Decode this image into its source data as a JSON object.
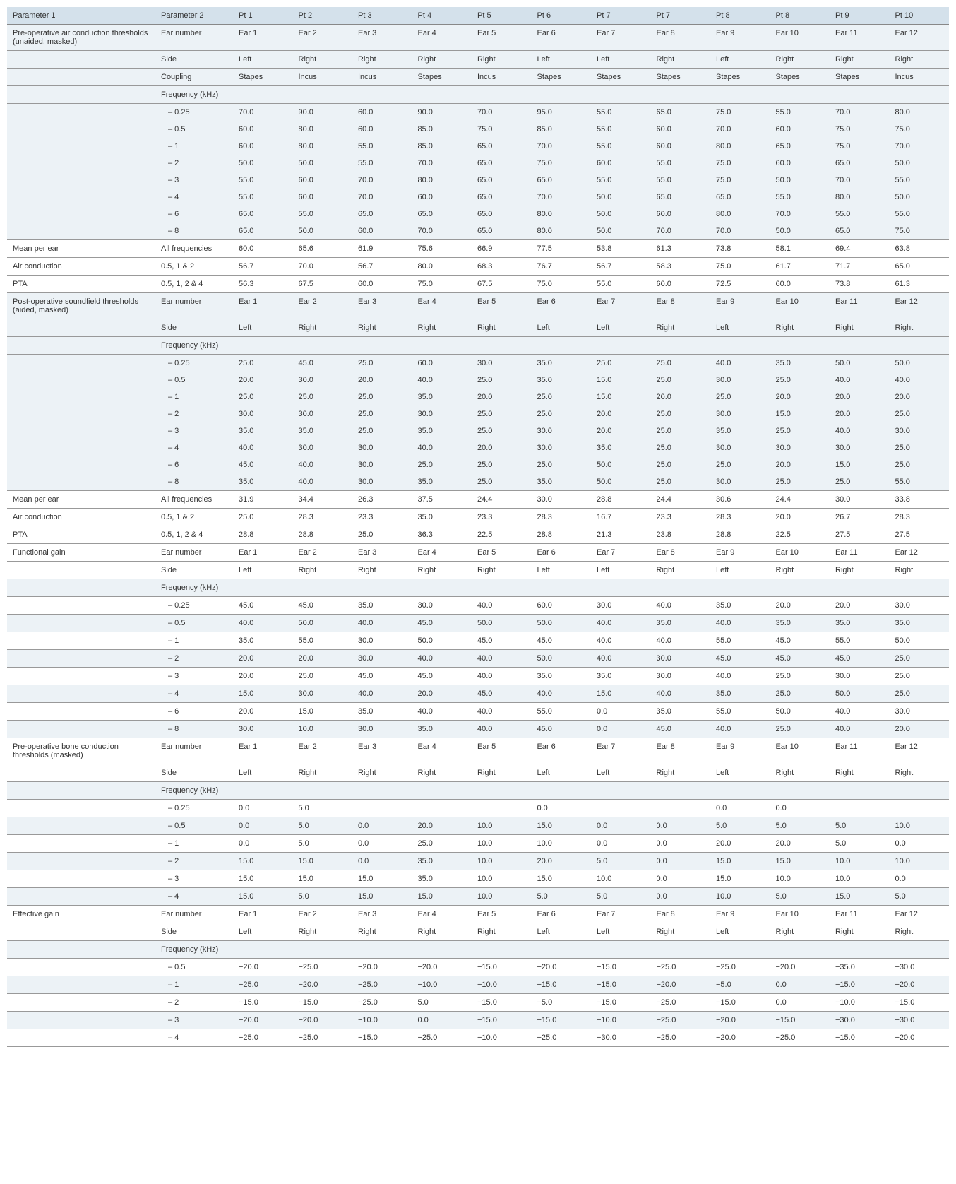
{
  "headers": {
    "param1": "Parameter 1",
    "param2": "Parameter 2",
    "pts": [
      "Pt 1",
      "Pt 2",
      "Pt 3",
      "Pt 4",
      "Pt 5",
      "Pt 6",
      "Pt 7",
      "Pt 7",
      "Pt 8",
      "Pt 8",
      "Pt 9",
      "Pt 10"
    ]
  },
  "ears": [
    "Ear 1",
    "Ear 2",
    "Ear 3",
    "Ear 4",
    "Ear 5",
    "Ear 6",
    "Ear 7",
    "Ear 8",
    "Ear 9",
    "Ear 10",
    "Ear 11",
    "Ear 12"
  ],
  "sides": [
    "Left",
    "Right",
    "Right",
    "Right",
    "Right",
    "Left",
    "Left",
    "Right",
    "Left",
    "Right",
    "Right",
    "Right"
  ],
  "coupling": [
    "Stapes",
    "Incus",
    "Incus",
    "Stapes",
    "Incus",
    "Stapes",
    "Stapes",
    "Stapes",
    "Stapes",
    "Stapes",
    "Stapes",
    "Incus"
  ],
  "labels": {
    "ear_number": "Ear number",
    "side": "Side",
    "coupling": "Coupling",
    "freq": "Frequency (kHz)",
    "mean": "Mean per ear",
    "air": "Air conduction",
    "pta": "PTA",
    "all": "All frequencies",
    "f025": "– 0.25",
    "f05": "– 0.5",
    "f1": "– 1",
    "f2": "– 2",
    "f3": "– 3",
    "f4": "– 4",
    "f6": "– 6",
    "f8": "– 8",
    "r1": "0.5, 1 & 2",
    "r2": "0.5, 1, 2 & 4"
  },
  "s1": {
    "title": "Pre-operative air conduction thresholds (unaided, masked)",
    "f025": [
      "70.0",
      "90.0",
      "60.0",
      "90.0",
      "70.0",
      "95.0",
      "55.0",
      "65.0",
      "75.0",
      "55.0",
      "70.0",
      "80.0"
    ],
    "f05": [
      "60.0",
      "80.0",
      "60.0",
      "85.0",
      "75.0",
      "85.0",
      "55.0",
      "60.0",
      "70.0",
      "60.0",
      "75.0",
      "75.0"
    ],
    "f1": [
      "60.0",
      "80.0",
      "55.0",
      "85.0",
      "65.0",
      "70.0",
      "55.0",
      "60.0",
      "80.0",
      "65.0",
      "75.0",
      "70.0"
    ],
    "f2": [
      "50.0",
      "50.0",
      "55.0",
      "70.0",
      "65.0",
      "75.0",
      "60.0",
      "55.0",
      "75.0",
      "60.0",
      "65.0",
      "50.0"
    ],
    "f3": [
      "55.0",
      "60.0",
      "70.0",
      "80.0",
      "65.0",
      "65.0",
      "55.0",
      "55.0",
      "75.0",
      "50.0",
      "70.0",
      "55.0"
    ],
    "f4": [
      "55.0",
      "60.0",
      "70.0",
      "60.0",
      "65.0",
      "70.0",
      "50.0",
      "65.0",
      "65.0",
      "55.0",
      "80.0",
      "50.0"
    ],
    "f6": [
      "65.0",
      "55.0",
      "65.0",
      "65.0",
      "65.0",
      "80.0",
      "50.0",
      "60.0",
      "80.0",
      "70.0",
      "55.0",
      "55.0"
    ],
    "f8": [
      "65.0",
      "50.0",
      "60.0",
      "70.0",
      "65.0",
      "80.0",
      "50.0",
      "70.0",
      "70.0",
      "50.0",
      "65.0",
      "75.0"
    ],
    "mean": [
      "60.0",
      "65.6",
      "61.9",
      "75.6",
      "66.9",
      "77.5",
      "53.8",
      "61.3",
      "73.8",
      "58.1",
      "69.4",
      "63.8"
    ],
    "air": [
      "56.7",
      "70.0",
      "56.7",
      "80.0",
      "68.3",
      "76.7",
      "56.7",
      "58.3",
      "75.0",
      "61.7",
      "71.7",
      "65.0"
    ],
    "pta": [
      "56.3",
      "67.5",
      "60.0",
      "75.0",
      "67.5",
      "75.0",
      "55.0",
      "60.0",
      "72.5",
      "60.0",
      "73.8",
      "61.3"
    ]
  },
  "s2": {
    "title": "Post-operative soundfield thresholds (aided, masked)",
    "f025": [
      "25.0",
      "45.0",
      "25.0",
      "60.0",
      "30.0",
      "35.0",
      "25.0",
      "25.0",
      "40.0",
      "35.0",
      "50.0",
      "50.0"
    ],
    "f05": [
      "20.0",
      "30.0",
      "20.0",
      "40.0",
      "25.0",
      "35.0",
      "15.0",
      "25.0",
      "30.0",
      "25.0",
      "40.0",
      "40.0"
    ],
    "f1": [
      "25.0",
      "25.0",
      "25.0",
      "35.0",
      "20.0",
      "25.0",
      "15.0",
      "20.0",
      "25.0",
      "20.0",
      "20.0",
      "20.0"
    ],
    "f2": [
      "30.0",
      "30.0",
      "25.0",
      "30.0",
      "25.0",
      "25.0",
      "20.0",
      "25.0",
      "30.0",
      "15.0",
      "20.0",
      "25.0"
    ],
    "f3": [
      "35.0",
      "35.0",
      "25.0",
      "35.0",
      "25.0",
      "30.0",
      "20.0",
      "25.0",
      "35.0",
      "25.0",
      "40.0",
      "30.0"
    ],
    "f4": [
      "40.0",
      "30.0",
      "30.0",
      "40.0",
      "20.0",
      "30.0",
      "35.0",
      "25.0",
      "30.0",
      "30.0",
      "30.0",
      "25.0"
    ],
    "f6": [
      "45.0",
      "40.0",
      "30.0",
      "25.0",
      "25.0",
      "25.0",
      "50.0",
      "25.0",
      "25.0",
      "20.0",
      "15.0",
      "25.0"
    ],
    "f8": [
      "35.0",
      "40.0",
      "30.0",
      "35.0",
      "25.0",
      "35.0",
      "50.0",
      "25.0",
      "30.0",
      "25.0",
      "25.0",
      "55.0"
    ],
    "mean": [
      "31.9",
      "34.4",
      "26.3",
      "37.5",
      "24.4",
      "30.0",
      "28.8",
      "24.4",
      "30.6",
      "24.4",
      "30.0",
      "33.8"
    ],
    "air": [
      "25.0",
      "28.3",
      "23.3",
      "35.0",
      "23.3",
      "28.3",
      "16.7",
      "23.3",
      "28.3",
      "20.0",
      "26.7",
      "28.3"
    ],
    "pta": [
      "28.8",
      "28.8",
      "25.0",
      "36.3",
      "22.5",
      "28.8",
      "21.3",
      "23.8",
      "28.8",
      "22.5",
      "27.5",
      "27.5"
    ]
  },
  "s3": {
    "title": "Functional gain",
    "f025": [
      "45.0",
      "45.0",
      "35.0",
      "30.0",
      "40.0",
      "60.0",
      "30.0",
      "40.0",
      "35.0",
      "20.0",
      "20.0",
      "30.0"
    ],
    "f05": [
      "40.0",
      "50.0",
      "40.0",
      "45.0",
      "50.0",
      "50.0",
      "40.0",
      "35.0",
      "40.0",
      "35.0",
      "35.0",
      "35.0"
    ],
    "f1": [
      "35.0",
      "55.0",
      "30.0",
      "50.0",
      "45.0",
      "45.0",
      "40.0",
      "40.0",
      "55.0",
      "45.0",
      "55.0",
      "50.0"
    ],
    "f2": [
      "20.0",
      "20.0",
      "30.0",
      "40.0",
      "40.0",
      "50.0",
      "40.0",
      "30.0",
      "45.0",
      "45.0",
      "45.0",
      "25.0"
    ],
    "f3": [
      "20.0",
      "25.0",
      "45.0",
      "45.0",
      "40.0",
      "35.0",
      "35.0",
      "30.0",
      "40.0",
      "25.0",
      "30.0",
      "25.0"
    ],
    "f4": [
      "15.0",
      "30.0",
      "40.0",
      "20.0",
      "45.0",
      "40.0",
      "15.0",
      "40.0",
      "35.0",
      "25.0",
      "50.0",
      "25.0"
    ],
    "f6": [
      "20.0",
      "15.0",
      "35.0",
      "40.0",
      "40.0",
      "55.0",
      "0.0",
      "35.0",
      "55.0",
      "50.0",
      "40.0",
      "30.0"
    ],
    "f8": [
      "30.0",
      "10.0",
      "30.0",
      "35.0",
      "40.0",
      "45.0",
      "0.0",
      "45.0",
      "40.0",
      "25.0",
      "40.0",
      "20.0"
    ]
  },
  "s4": {
    "title": "Pre-operative bone conduction thresholds (masked)",
    "f025": [
      "0.0",
      "5.0",
      "",
      "",
      "",
      "0.0",
      "",
      "",
      "0.0",
      "0.0",
      "",
      ""
    ],
    "f05": [
      "0.0",
      "5.0",
      "0.0",
      "20.0",
      "10.0",
      "15.0",
      "0.0",
      "0.0",
      "5.0",
      "5.0",
      "5.0",
      "10.0"
    ],
    "f1": [
      "0.0",
      "5.0",
      "0.0",
      "25.0",
      "10.0",
      "10.0",
      "0.0",
      "0.0",
      "20.0",
      "20.0",
      "5.0",
      "0.0"
    ],
    "f2": [
      "15.0",
      "15.0",
      "0.0",
      "35.0",
      "10.0",
      "20.0",
      "5.0",
      "0.0",
      "15.0",
      "15.0",
      "10.0",
      "10.0"
    ],
    "f3": [
      "15.0",
      "15.0",
      "15.0",
      "35.0",
      "10.0",
      "15.0",
      "10.0",
      "0.0",
      "15.0",
      "10.0",
      "10.0",
      "0.0"
    ],
    "f4": [
      "15.0",
      "5.0",
      "15.0",
      "15.0",
      "10.0",
      "5.0",
      "5.0",
      "0.0",
      "10.0",
      "5.0",
      "15.0",
      "5.0"
    ]
  },
  "s5": {
    "title": "Effective gain",
    "f05": [
      "−20.0",
      "−25.0",
      "−20.0",
      "−20.0",
      "−15.0",
      "−20.0",
      "−15.0",
      "−25.0",
      "−25.0",
      "−20.0",
      "−35.0",
      "−30.0"
    ],
    "f1": [
      "−25.0",
      "−20.0",
      "−25.0",
      "−10.0",
      "−10.0",
      "−15.0",
      "−15.0",
      "−20.0",
      "−5.0",
      "0.0",
      "−15.0",
      "−20.0"
    ],
    "f2": [
      "−15.0",
      "−15.0",
      "−25.0",
      "5.0",
      "−15.0",
      "−5.0",
      "−15.0",
      "−25.0",
      "−15.0",
      "0.0",
      "−10.0",
      "−15.0"
    ],
    "f3": [
      "−20.0",
      "−20.0",
      "−10.0",
      "0.0",
      "−15.0",
      "−15.0",
      "−10.0",
      "−25.0",
      "−20.0",
      "−15.0",
      "−30.0",
      "−30.0"
    ],
    "f4": [
      "−25.0",
      "−25.0",
      "−15.0",
      "−25.0",
      "−10.0",
      "−25.0",
      "−30.0",
      "−25.0",
      "−20.0",
      "−25.0",
      "−15.0",
      "−20.0"
    ]
  }
}
